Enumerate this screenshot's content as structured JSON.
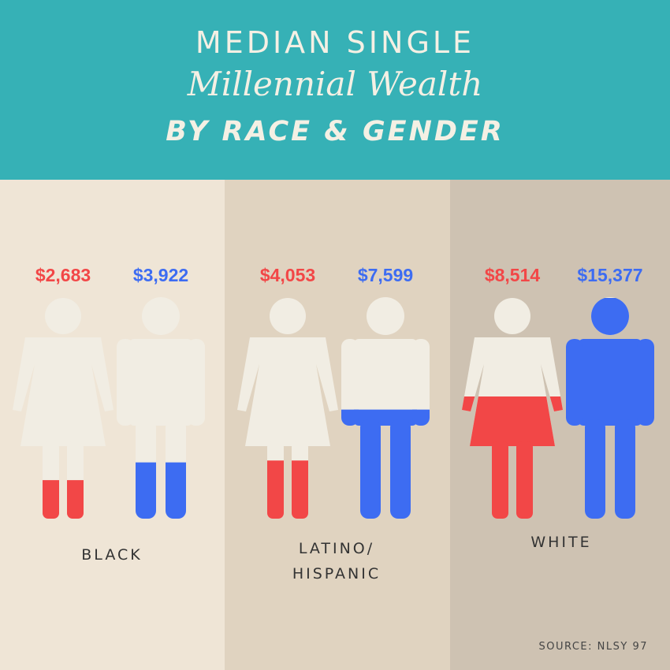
{
  "title": {
    "line1": "MEDIAN SINGLE",
    "line2": "Millennial Wealth",
    "line3": "BY RACE & GENDER"
  },
  "source": "SOURCE: NLSY 97",
  "colors": {
    "female": "#f24747",
    "male": "#3d6cf2",
    "figure": "#f1ede3",
    "header": "#36b1b6"
  },
  "chart_data": {
    "type": "bar",
    "categories": [
      "BLACK",
      "LATINO/ HISPANIC",
      "WHITE"
    ],
    "category_lines": [
      [
        "BLACK"
      ],
      [
        "LATINO/",
        "HISPANIC"
      ],
      [
        "WHITE"
      ]
    ],
    "series": [
      {
        "key": "female",
        "values": [
          2683,
          4053,
          8514
        ],
        "labels": [
          "$2,683",
          "$4,053",
          "$8,514"
        ]
      },
      {
        "key": "male",
        "values": [
          3922,
          7599,
          15377
        ],
        "labels": [
          "$3,922",
          "$7,599",
          "$15,377"
        ]
      }
    ],
    "max": 15377
  }
}
